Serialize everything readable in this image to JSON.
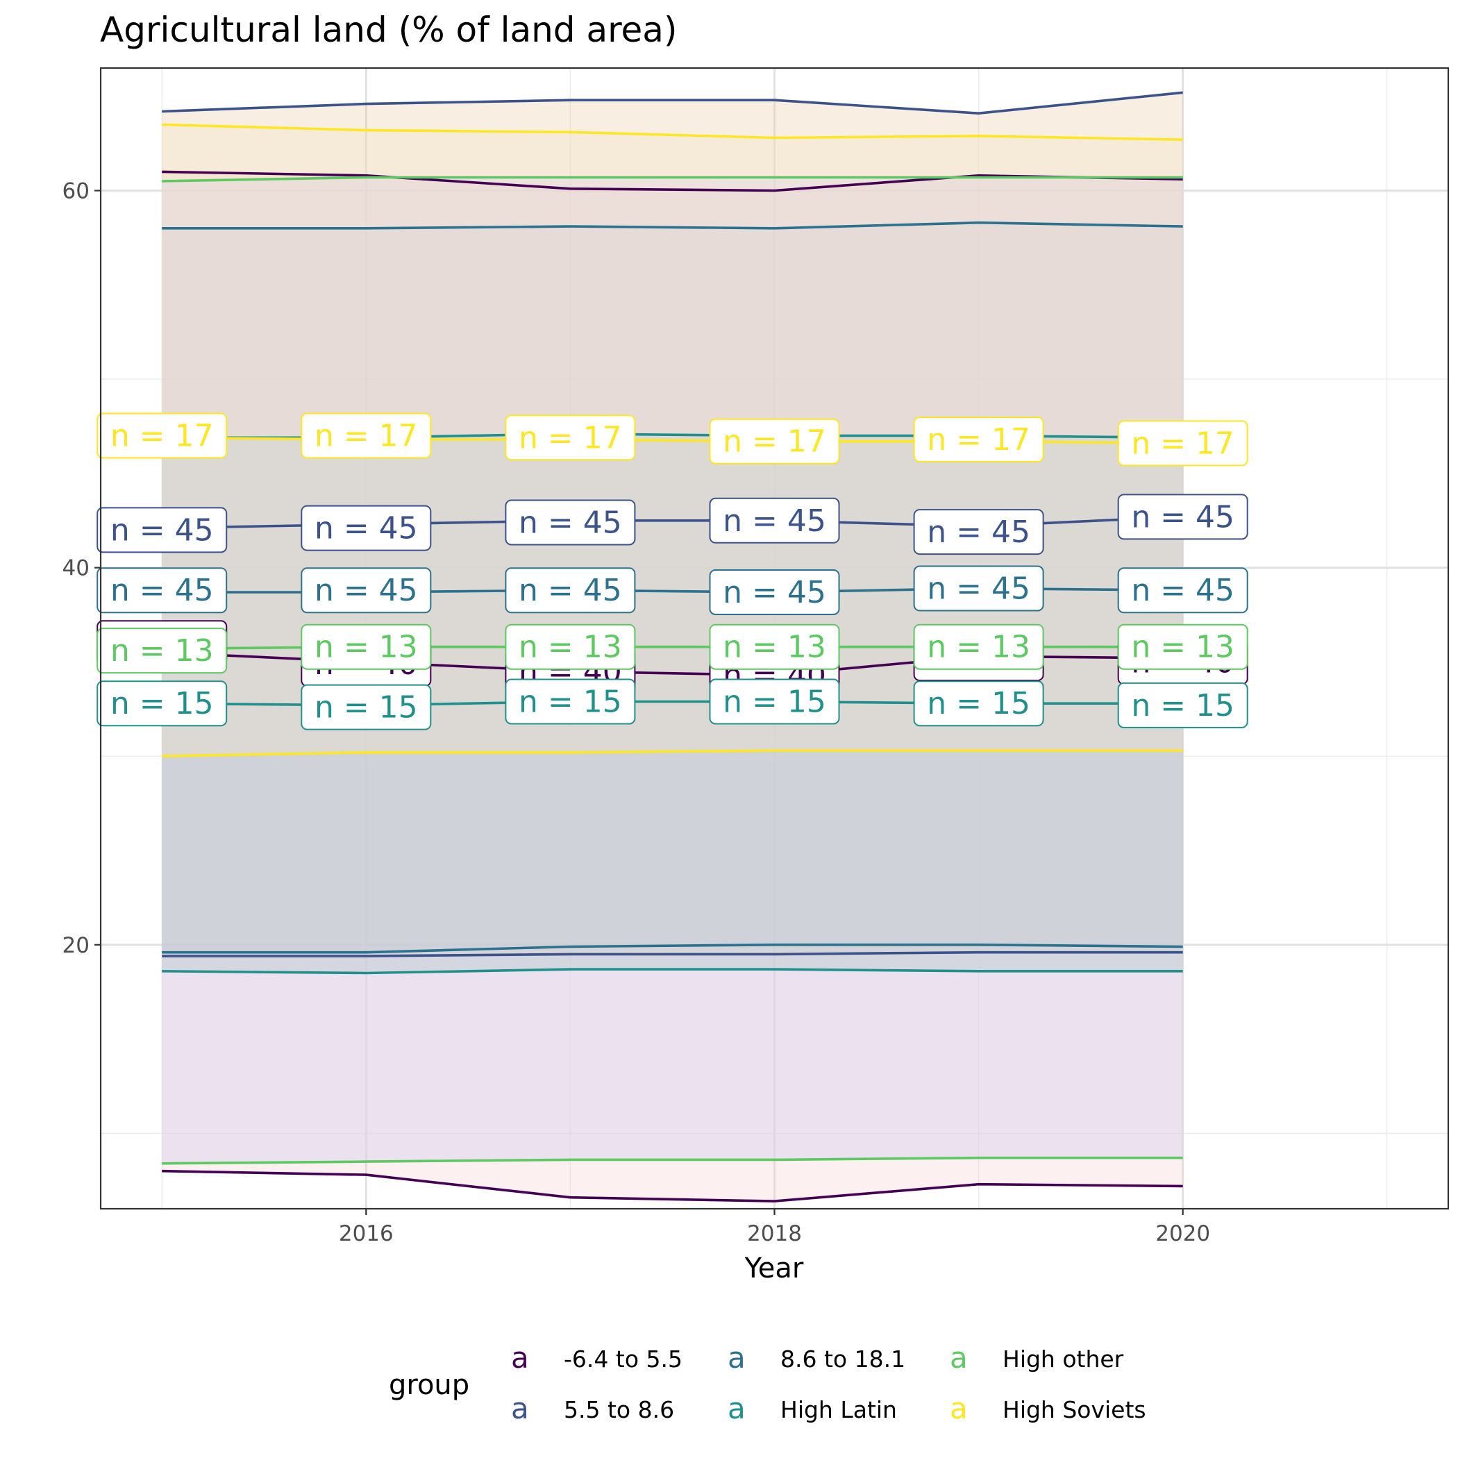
{
  "chart_data": {
    "type": "line",
    "title": "Agricultural land (% of land area)",
    "xlabel": "Year",
    "ylabel": "",
    "xlim": [
      2014.7,
      2021.3
    ],
    "ylim": [
      6.0,
      66.5
    ],
    "x_ticks": [
      2016,
      2018,
      2020
    ],
    "y_ticks": [
      20,
      40,
      60
    ],
    "grid": true,
    "legend_position": "bottom",
    "legend_title": "group",
    "legend_key_glyph": "a",
    "x": [
      2015,
      2016,
      2017,
      2018,
      2019,
      2020
    ],
    "series": [
      {
        "name": "-6.4 to 5.5",
        "color": "#440154",
        "fill": "#f8c8c8",
        "fill_opacity": 0.28,
        "mean": [
          35.5,
          35.0,
          34.5,
          34.3,
          35.3,
          35.2
        ],
        "upper": [
          61.0,
          60.8,
          60.1,
          60.0,
          60.8,
          60.6
        ],
        "lower": [
          8.0,
          7.8,
          6.6,
          6.4,
          7.3,
          7.2
        ],
        "label_y": [
          36.0,
          34.9,
          34.5,
          34.3,
          35.2,
          35.0
        ],
        "label": "n = 40"
      },
      {
        "name": "5.5 to 8.6",
        "color": "#3b528b",
        "fill": "#e8c8a0",
        "fill_opacity": 0.3,
        "mean": [
          42.1,
          42.3,
          42.5,
          42.5,
          42.2,
          42.7
        ],
        "upper": [
          64.2,
          64.6,
          64.8,
          64.8,
          64.1,
          65.2
        ],
        "lower": [
          19.4,
          19.4,
          19.5,
          19.5,
          19.6,
          19.6
        ],
        "label_y": [
          42.0,
          42.1,
          42.4,
          42.5,
          41.9,
          42.7
        ],
        "label": "n = 45"
      },
      {
        "name": "8.6 to 18.1",
        "color": "#2c728e",
        "fill": "#b8c0cc",
        "fill_opacity": 0.28,
        "mean": [
          38.7,
          38.7,
          38.8,
          38.7,
          38.9,
          38.8
        ],
        "upper": [
          58.0,
          58.0,
          58.1,
          58.0,
          58.3,
          58.1
        ],
        "lower": [
          19.6,
          19.6,
          19.9,
          20.0,
          20.0,
          19.9
        ],
        "label_y": [
          38.8,
          38.8,
          38.8,
          38.7,
          38.9,
          38.8
        ],
        "label": "n = 45"
      },
      {
        "name": "High Latin",
        "color": "#21908c",
        "fill": "#aac8bc",
        "fill_opacity": 0.55,
        "mean": [
          32.8,
          32.7,
          32.9,
          32.9,
          32.8,
          32.8
        ],
        "upper": [
          46.9,
          46.9,
          47.1,
          47.0,
          47.0,
          46.9
        ],
        "lower": [
          18.6,
          18.5,
          18.7,
          18.7,
          18.6,
          18.6
        ],
        "label_y": [
          32.8,
          32.6,
          32.9,
          32.9,
          32.8,
          32.7
        ],
        "label": "n = 15"
      },
      {
        "name": "High other",
        "color": "#5ec962",
        "fill": "#dcd4ee",
        "fill_opacity": 0.5,
        "mean": [
          35.7,
          35.8,
          35.8,
          35.8,
          35.8,
          35.8
        ],
        "upper": [
          60.5,
          60.7,
          60.7,
          60.7,
          60.7,
          60.7
        ],
        "lower": [
          8.4,
          8.5,
          8.6,
          8.6,
          8.7,
          8.7
        ],
        "label_y": [
          35.6,
          35.8,
          35.8,
          35.8,
          35.8,
          35.8
        ],
        "label": "n = 13"
      },
      {
        "name": "High Soviets",
        "color": "#fde725",
        "fill": "#f4e6c8",
        "fill_opacity": 0.35,
        "mean": [
          46.9,
          46.8,
          46.8,
          46.7,
          46.7,
          46.6
        ],
        "upper": [
          63.5,
          63.2,
          63.1,
          62.8,
          62.9,
          62.7
        ],
        "lower": [
          30.0,
          30.2,
          30.2,
          30.3,
          30.3,
          30.3
        ],
        "label_y": [
          47.0,
          47.0,
          46.9,
          46.7,
          46.8,
          46.6
        ],
        "label": "n = 17"
      }
    ]
  }
}
